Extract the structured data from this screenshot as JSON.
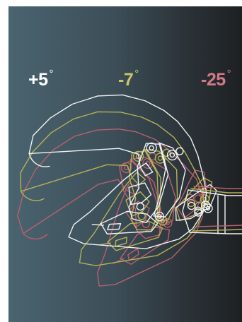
{
  "labels": [
    {
      "text": "+5",
      "degree": "°",
      "color": "#ffffff"
    },
    {
      "text": "-7",
      "degree": "°",
      "color": "#c9c46a"
    },
    {
      "text": "-25",
      "degree": "°",
      "color": "#cf7a86"
    }
  ],
  "colors": {
    "bg_left": "#4a6470",
    "bg_right": "#1d2023",
    "outline_white": "#f2f2f2",
    "outline_yellow": "#b7b057",
    "outline_red": "#b8606e"
  }
}
